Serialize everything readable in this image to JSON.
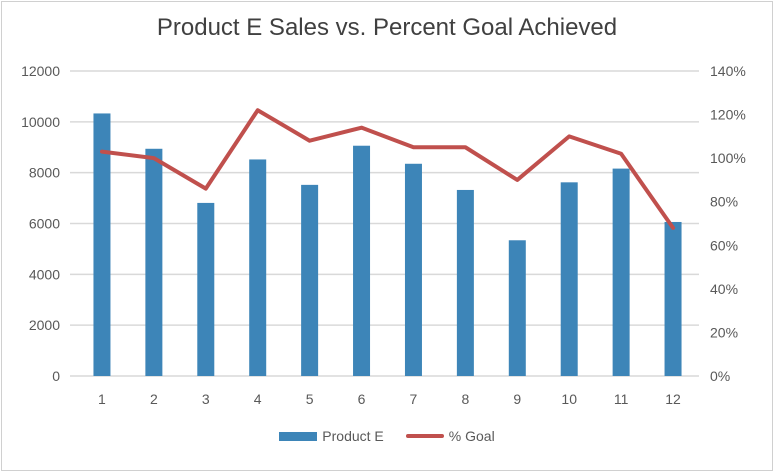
{
  "chart_data": {
    "type": "bar+line",
    "title": "Product E Sales vs. Percent Goal Achieved",
    "categories": [
      "1",
      "2",
      "3",
      "4",
      "5",
      "6",
      "7",
      "8",
      "9",
      "10",
      "11",
      "12"
    ],
    "series": [
      {
        "name": "Product E",
        "type": "bar",
        "axis": "left",
        "color": "#3d85b8",
        "values": [
          10330,
          8940,
          6810,
          8520,
          7520,
          9060,
          8350,
          7320,
          5340,
          7620,
          8160,
          6060
        ]
      },
      {
        "name": "% Goal",
        "type": "line",
        "axis": "right",
        "color": "#c0504d",
        "values": [
          103,
          100,
          86,
          122,
          108,
          114,
          105,
          105,
          90,
          110,
          102,
          68
        ]
      }
    ],
    "left_axis": {
      "ylim": [
        0,
        12000
      ],
      "ticks": [
        "0",
        "2000",
        "4000",
        "6000",
        "8000",
        "10000",
        "12000"
      ]
    },
    "right_axis": {
      "ylim": [
        0,
        140
      ],
      "ticks": [
        "0%",
        "20%",
        "40%",
        "60%",
        "80%",
        "100%",
        "120%",
        "140%"
      ]
    },
    "grid": true,
    "legend_position": "bottom"
  }
}
